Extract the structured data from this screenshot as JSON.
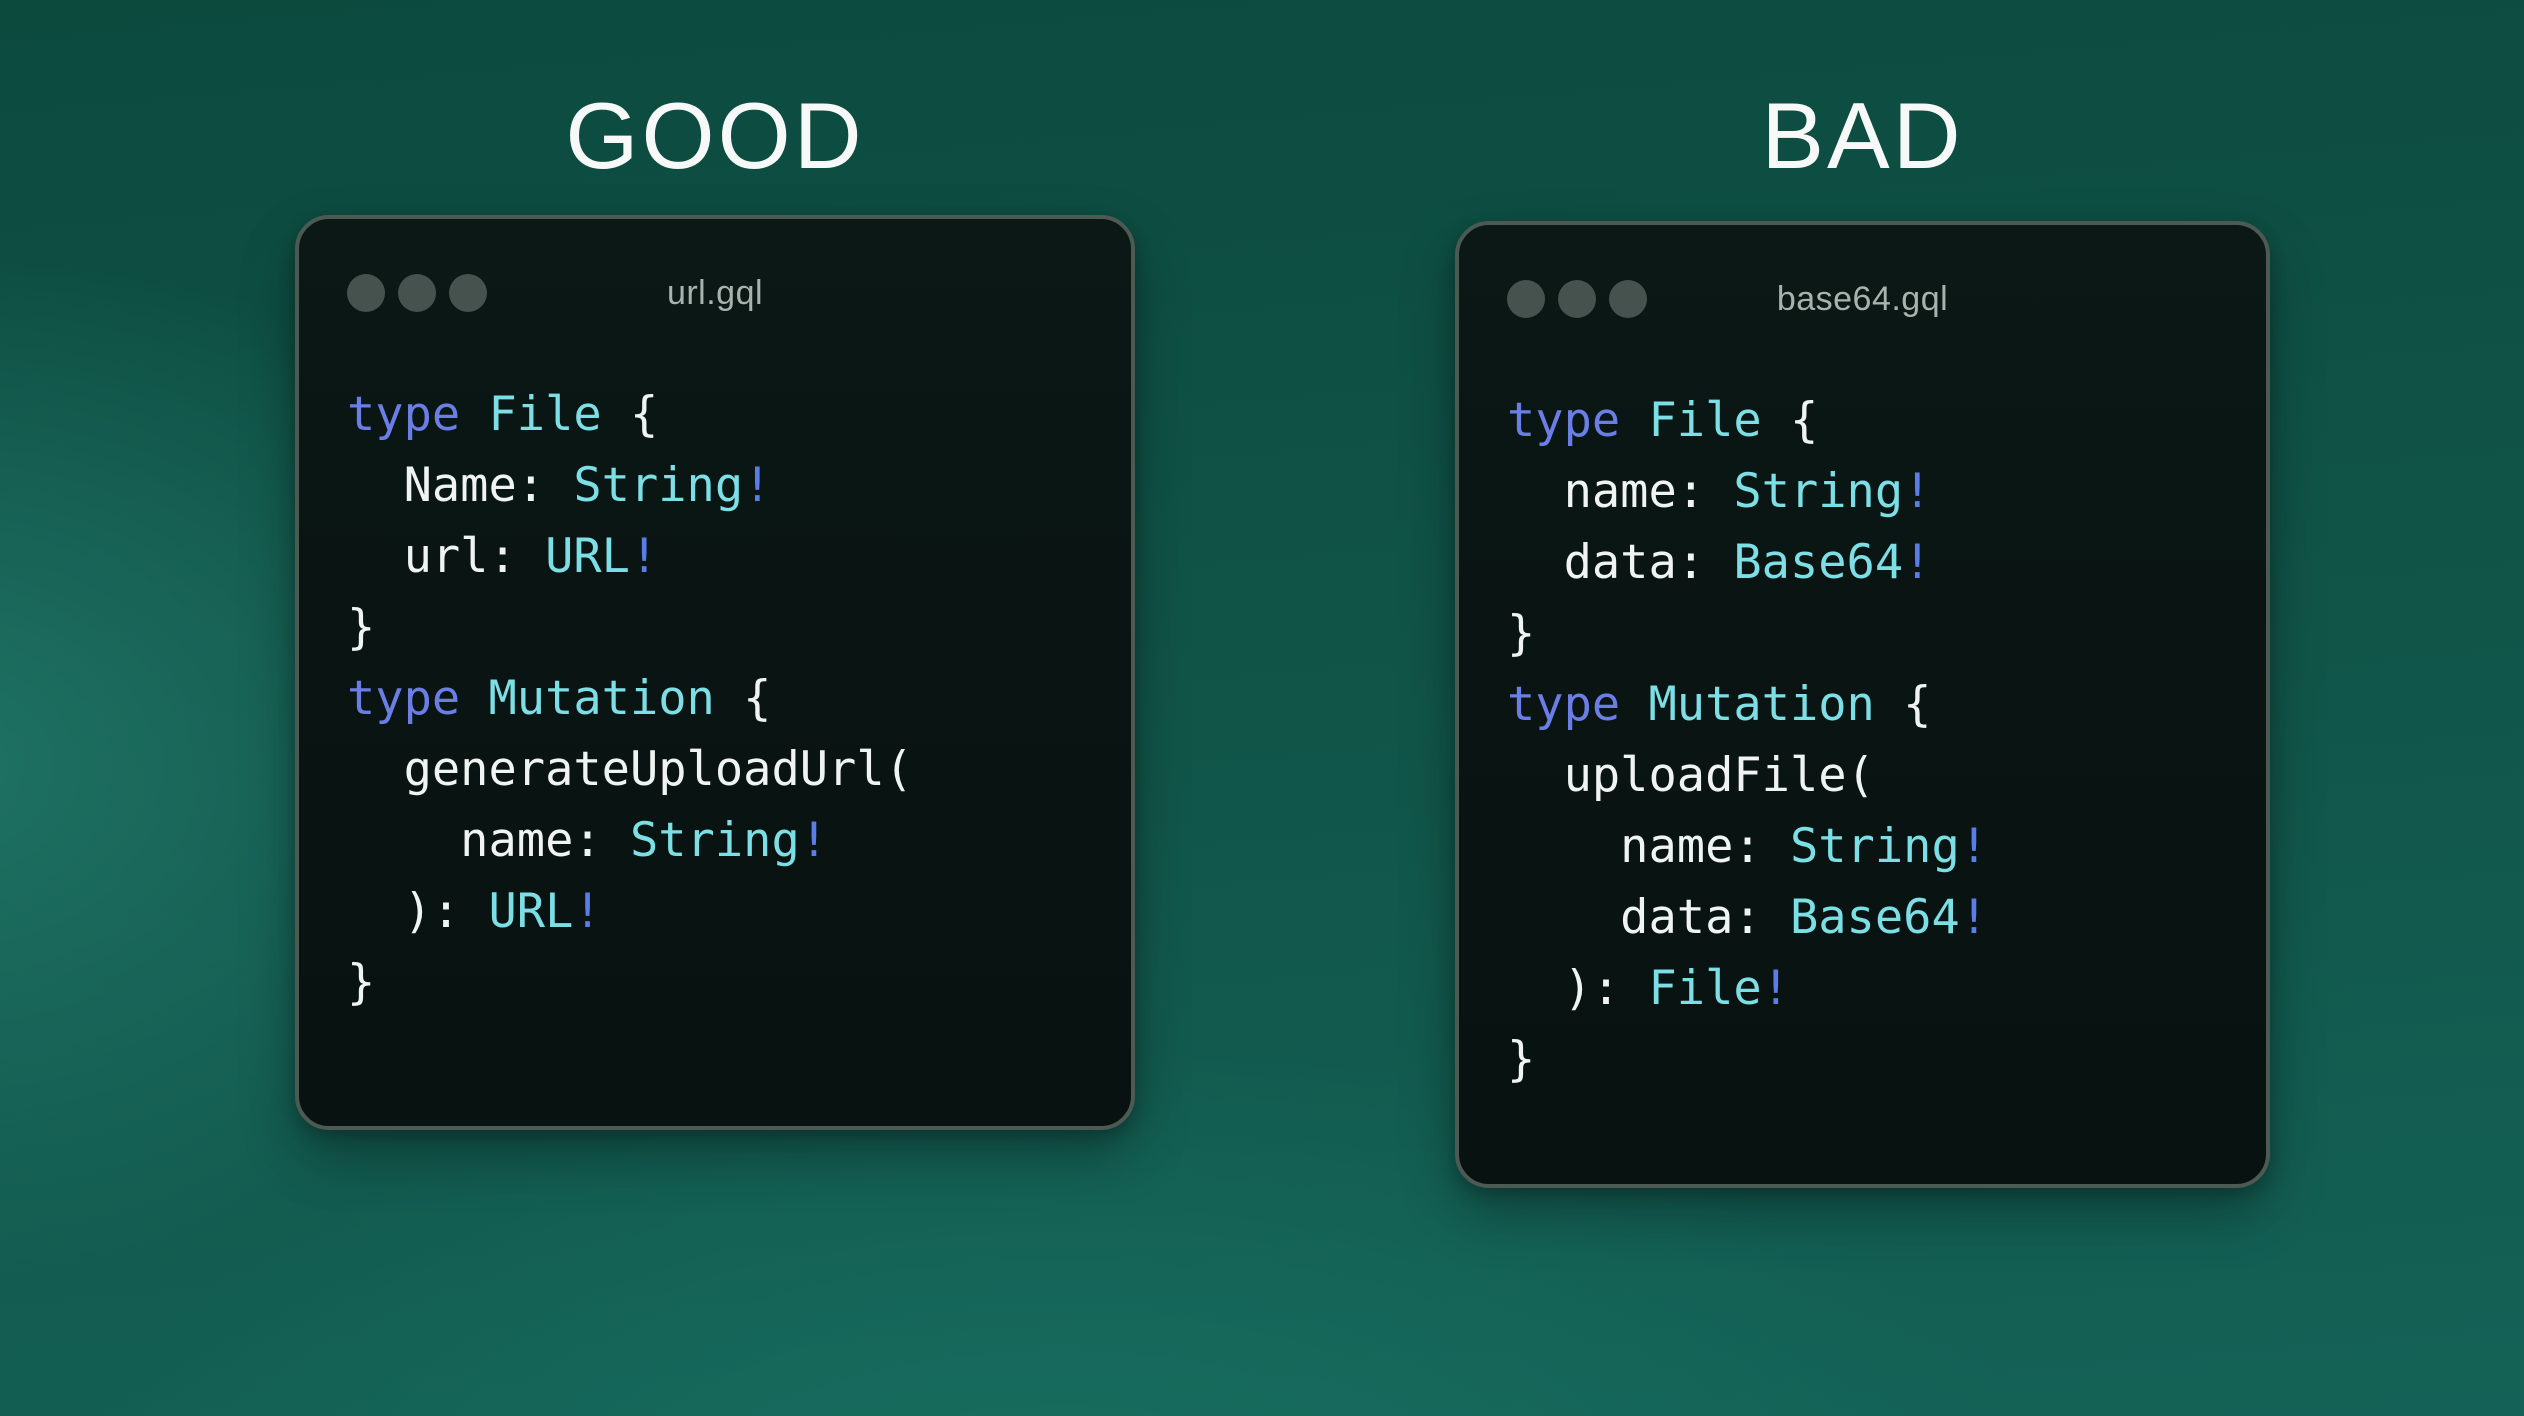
{
  "background": {
    "top": "#0c4a3e",
    "mid": "#115549",
    "bottom": "#146257",
    "glow": "#1f7365",
    "glow2": "#187061"
  },
  "colors": {
    "heading": "#f6f9f7",
    "window_bg": "#0a1513",
    "window_border": "#4d5953",
    "window_title": "#a9b3ad",
    "dot": "#46524d",
    "keyword": "#6b7ee6",
    "type": "#7ddfe6",
    "bang": "#5b7de9",
    "plain": "#eff3f1"
  },
  "left_panel": {
    "heading": "GOOD",
    "window_title": "url.gql",
    "code": [
      [
        [
          "kw",
          "type"
        ],
        [
          "pl",
          " "
        ],
        [
          "ty",
          "File"
        ],
        [
          "pl",
          " {"
        ]
      ],
      [
        [
          "pl",
          "  Name: "
        ],
        [
          "ty",
          "String"
        ],
        [
          "bang",
          "!"
        ]
      ],
      [
        [
          "pl",
          "  url: "
        ],
        [
          "ty",
          "URL"
        ],
        [
          "bang",
          "!"
        ]
      ],
      [
        [
          "pl",
          "}"
        ]
      ],
      [
        [
          "kw",
          "type"
        ],
        [
          "pl",
          " "
        ],
        [
          "ty",
          "Mutation"
        ],
        [
          "pl",
          " {"
        ]
      ],
      [
        [
          "pl",
          "  generateUploadUrl("
        ]
      ],
      [
        [
          "pl",
          "    name: "
        ],
        [
          "ty",
          "String"
        ],
        [
          "bang",
          "!"
        ]
      ],
      [
        [
          "pl",
          "  ): "
        ],
        [
          "ty",
          "URL"
        ],
        [
          "bang",
          "!"
        ]
      ],
      [
        [
          "pl",
          "}"
        ]
      ]
    ]
  },
  "right_panel": {
    "heading": "BAD",
    "window_title": "base64.gql",
    "code": [
      [
        [
          "kw",
          "type"
        ],
        [
          "pl",
          " "
        ],
        [
          "ty",
          "File"
        ],
        [
          "pl",
          " {"
        ]
      ],
      [
        [
          "pl",
          "  name: "
        ],
        [
          "ty",
          "String"
        ],
        [
          "bang",
          "!"
        ]
      ],
      [
        [
          "pl",
          "  data: "
        ],
        [
          "ty",
          "Base64"
        ],
        [
          "bang",
          "!"
        ]
      ],
      [
        [
          "pl",
          "}"
        ]
      ],
      [
        [
          "kw",
          "type"
        ],
        [
          "pl",
          " "
        ],
        [
          "ty",
          "Mutation"
        ],
        [
          "pl",
          " {"
        ]
      ],
      [
        [
          "pl",
          "  uploadFile("
        ]
      ],
      [
        [
          "pl",
          "    name: "
        ],
        [
          "ty",
          "String"
        ],
        [
          "bang",
          "!"
        ]
      ],
      [
        [
          "pl",
          "    data: "
        ],
        [
          "ty",
          "Base64"
        ],
        [
          "bang",
          "!"
        ]
      ],
      [
        [
          "pl",
          "  ): "
        ],
        [
          "ty",
          "File"
        ],
        [
          "bang",
          "!"
        ]
      ],
      [
        [
          "pl",
          "}"
        ]
      ]
    ]
  }
}
